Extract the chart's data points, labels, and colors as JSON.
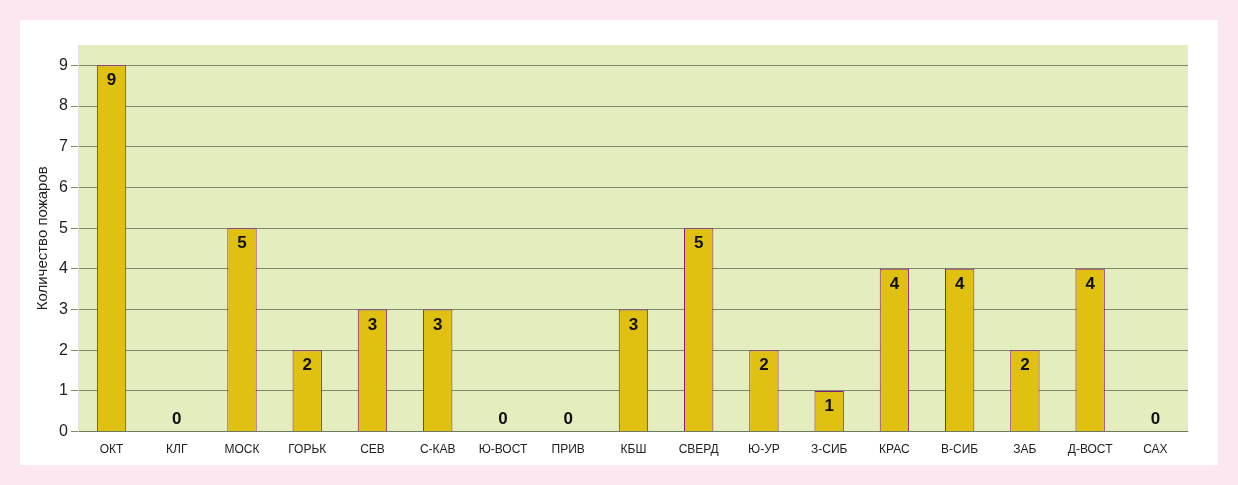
{
  "chart_data": {
    "type": "bar",
    "ylabel": "Количество пожаров",
    "categories": [
      "ОКТ",
      "КЛГ",
      "МОСК",
      "ГОРЬК",
      "СЕВ",
      "С-КАВ",
      "Ю-ВОСТ",
      "ПРИВ",
      "КБШ",
      "СВЕРД",
      "Ю-УР",
      "З-СИБ",
      "КРАС",
      "В-СИБ",
      "ЗАБ",
      "Д-ВОСТ",
      "САХ"
    ],
    "values": [
      9,
      0,
      5,
      2,
      3,
      3,
      0,
      0,
      3,
      5,
      2,
      1,
      4,
      4,
      2,
      4,
      0
    ],
    "color": "#e0c010",
    "ylim": [
      0,
      9.5
    ],
    "yticks": [
      0,
      1,
      2,
      3,
      4,
      5,
      6,
      7,
      8,
      9
    ],
    "grid": "y",
    "data_labels": true,
    "legend": false
  }
}
